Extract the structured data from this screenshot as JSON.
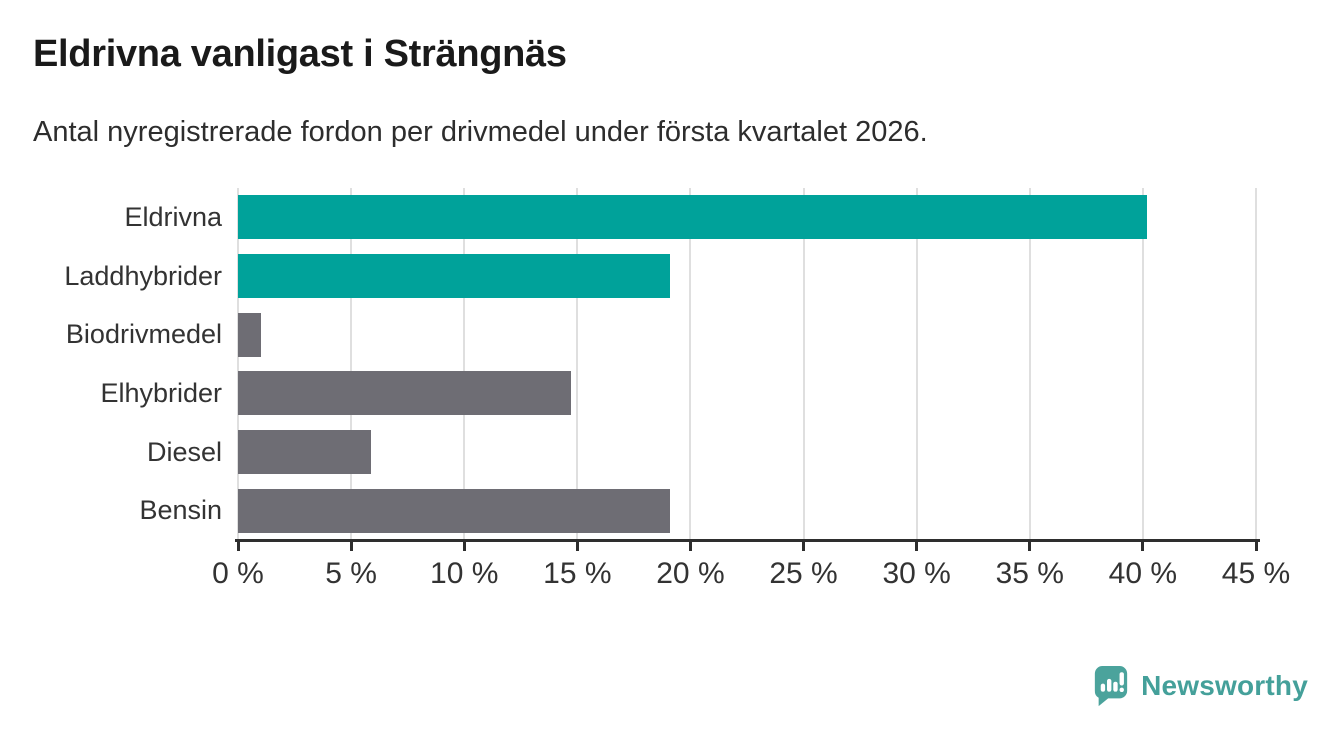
{
  "chart_data": {
    "type": "bar",
    "orientation": "horizontal",
    "title": "Eldrivna vanligast i Strängnäs",
    "subtitle": "Antal nyregistrerade fordon per drivmedel under första kvartalet 2026.",
    "categories": [
      "Eldrivna",
      "Laddhybrider",
      "Biodrivmedel",
      "Elhybrider",
      "Diesel",
      "Bensin"
    ],
    "values": [
      40.2,
      19.1,
      1.0,
      14.7,
      5.9,
      19.1
    ],
    "unit": "%",
    "colors": [
      "#00a29a",
      "#00a29a",
      "#6e6d74",
      "#6e6d74",
      "#6e6d74",
      "#6e6d74"
    ],
    "highlight_color": "#00a29a",
    "base_color": "#6e6d74",
    "xlim": [
      0,
      45
    ],
    "xticks": [
      0,
      5,
      10,
      15,
      20,
      25,
      30,
      35,
      40,
      45
    ],
    "xtick_labels": [
      "0 %",
      "5 %",
      "10 %",
      "15 %",
      "20 %",
      "25 %",
      "30 %",
      "35 %",
      "40 %",
      "45 %"
    ],
    "grid": true,
    "legend": false,
    "gridline_color": "#dfdfdf",
    "axis_color": "#2e2e2e"
  },
  "branding": {
    "wordmark": "Newsworthy",
    "icon": "newsworthy-speech-bubble-bar-chart-icon",
    "icon_color": "#4ba39c",
    "text_color": "#44a09a"
  }
}
